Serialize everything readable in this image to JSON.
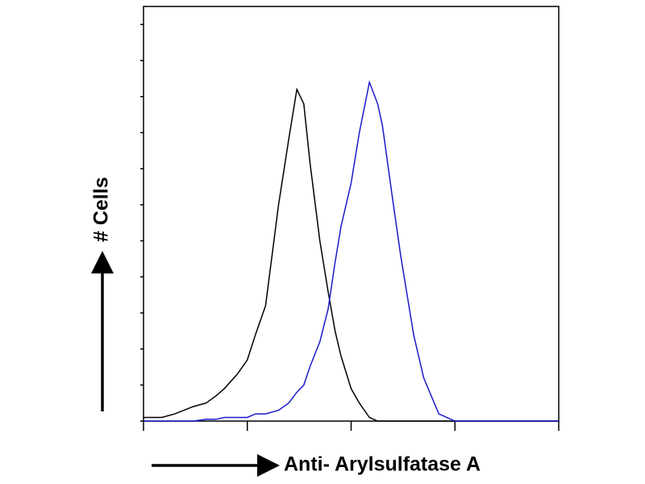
{
  "chart_data": {
    "type": "line",
    "x_label": "Anti- Arylsulfatase A",
    "y_label": "# Cells",
    "x": [
      1,
      1.5,
      2,
      3,
      4,
      5,
      6,
      8,
      10,
      12,
      15,
      20,
      25,
      30,
      35,
      40,
      50,
      60,
      70,
      80,
      100,
      120,
      150,
      180,
      200,
      250,
      300,
      400,
      500,
      700,
      1000,
      2000,
      5000,
      10000
    ],
    "series": [
      {
        "color": "#000000",
        "values": [
          1,
          1,
          2,
          4,
          5,
          7,
          9,
          13,
          17,
          24,
          32,
          60,
          78,
          92,
          88,
          72,
          50,
          36,
          25,
          18,
          9,
          5,
          1,
          0,
          0,
          0,
          0,
          0,
          0,
          0,
          0,
          0,
          0,
          0
        ]
      },
      {
        "color": "#1a1acc",
        "values": [
          0,
          0,
          0,
          0,
          0.5,
          0.5,
          1,
          1,
          1,
          2,
          2,
          3,
          5,
          8,
          10,
          15,
          22,
          31,
          44,
          54,
          66,
          80,
          94,
          88,
          82,
          62,
          46,
          24,
          12,
          2,
          0,
          0,
          0,
          0
        ]
      }
    ],
    "xlog": true,
    "xlim": [
      1,
      10000
    ],
    "xticks": [
      1,
      10,
      100,
      1000,
      10000
    ],
    "ylim": [
      0,
      115
    ],
    "yticks": [
      0,
      10,
      20,
      30,
      40,
      50,
      60,
      70,
      80,
      90,
      100,
      110
    ]
  }
}
